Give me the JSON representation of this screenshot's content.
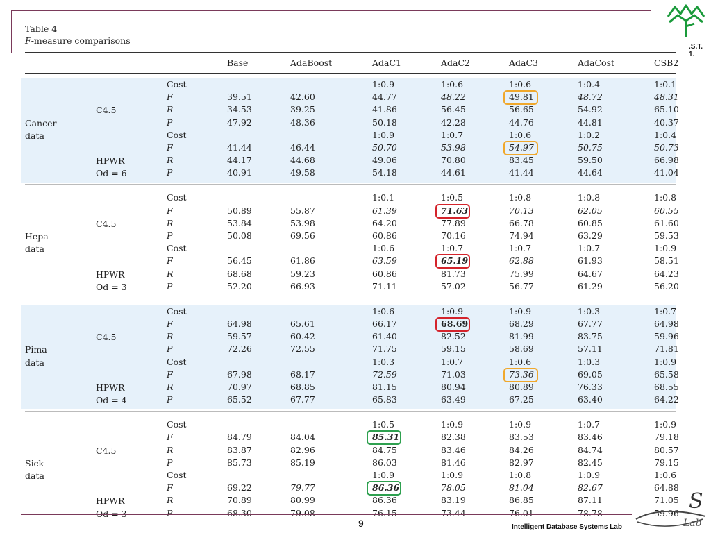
{
  "caption": {
    "title": "Table 4",
    "subtitle_italic": "F",
    "subtitle_rest": "-measure comparisons"
  },
  "logo_text": ".S.T.\n1.",
  "columns": [
    "Base",
    "AdaBoost",
    "AdaC1",
    "AdaC2",
    "AdaC3",
    "AdaCost",
    "CSB2"
  ],
  "groups": [
    {
      "dataset": [
        "Cancer",
        "data"
      ],
      "blocks": [
        {
          "clf": [
            "C4.5"
          ],
          "rows": [
            [
              "Cost",
              "",
              "",
              "1:0.9",
              "1:0.6",
              "1:0.6",
              "1:0.4",
              "1:0.1"
            ],
            [
              "F",
              "39.51",
              "42.60",
              "44.77",
              "48.22",
              "49.81",
              "48.72",
              "48.31"
            ],
            [
              "R",
              "34.53",
              "39.25",
              "41.86",
              "56.45",
              "56.65",
              "54.92",
              "65.10"
            ],
            [
              "P",
              "47.92",
              "48.36",
              "50.18",
              "42.28",
              "44.76",
              "44.81",
              "40.37"
            ]
          ]
        },
        {
          "clf": [
            "HPWR",
            "Od = 6"
          ],
          "rows": [
            [
              "Cost",
              "",
              "",
              "1:0.9",
              "1:0.7",
              "1:0.6",
              "1:0.2",
              "1:0.4"
            ],
            [
              "F",
              "41.44",
              "46.44",
              "50.70",
              "53.98",
              "54.97",
              "50.75",
              "50.73"
            ],
            [
              "R",
              "44.17",
              "44.68",
              "49.06",
              "70.80",
              "83.45",
              "59.50",
              "66.98"
            ],
            [
              "P",
              "40.91",
              "49.58",
              "54.18",
              "44.61",
              "41.44",
              "44.64",
              "41.04"
            ]
          ]
        }
      ]
    },
    {
      "dataset": [
        "Hepa",
        "data"
      ],
      "blocks": [
        {
          "clf": [
            "C4.5"
          ],
          "rows": [
            [
              "Cost",
              "",
              "",
              "1:0.1",
              "1:0.5",
              "1:0.8",
              "1:0.8",
              "1:0.8"
            ],
            [
              "F",
              "50.89",
              "55.87",
              "61.39",
              "71.63",
              "70.13",
              "62.05",
              "60.55"
            ],
            [
              "R",
              "53.84",
              "53.98",
              "64.20",
              "77.89",
              "66.78",
              "60.85",
              "61.60"
            ],
            [
              "P",
              "50.08",
              "69.56",
              "60.86",
              "70.16",
              "74.94",
              "63.29",
              "59.53"
            ]
          ]
        },
        {
          "clf": [
            "HPWR",
            "Od = 3"
          ],
          "rows": [
            [
              "Cost",
              "",
              "",
              "1:0.6",
              "1:0.7",
              "1:0.7",
              "1:0.7",
              "1:0.9"
            ],
            [
              "F",
              "56.45",
              "61.86",
              "63.59",
              "65.19",
              "62.88",
              "61.93",
              "58.51"
            ],
            [
              "R",
              "68.68",
              "59.23",
              "60.86",
              "81.73",
              "75.99",
              "64.67",
              "64.23"
            ],
            [
              "P",
              "52.20",
              "66.93",
              "71.11",
              "57.02",
              "56.77",
              "61.29",
              "56.20"
            ]
          ]
        }
      ]
    },
    {
      "dataset": [
        "Pima",
        "data"
      ],
      "blocks": [
        {
          "clf": [
            "C4.5"
          ],
          "rows": [
            [
              "Cost",
              "",
              "",
              "1:0.6",
              "1:0.9",
              "1:0.9",
              "1:0.3",
              "1:0.7"
            ],
            [
              "F",
              "64.98",
              "65.61",
              "66.17",
              "68.69",
              "68.29",
              "67.77",
              "64.98"
            ],
            [
              "R",
              "59.57",
              "60.42",
              "61.40",
              "82.52",
              "81.99",
              "83.75",
              "59.96"
            ],
            [
              "P",
              "72.26",
              "72.55",
              "71.75",
              "59.15",
              "58.69",
              "57.11",
              "71.81"
            ]
          ]
        },
        {
          "clf": [
            "HPWR",
            "Od = 4"
          ],
          "rows": [
            [
              "Cost",
              "",
              "",
              "1:0.3",
              "1:0.7",
              "1:0.6",
              "1:0.3",
              "1:0.9"
            ],
            [
              "F",
              "67.98",
              "68.17",
              "72.59",
              "71.03",
              "73.36",
              "69.05",
              "65.58"
            ],
            [
              "R",
              "70.97",
              "68.85",
              "81.15",
              "80.94",
              "80.89",
              "76.33",
              "68.55"
            ],
            [
              "P",
              "65.52",
              "67.77",
              "65.83",
              "63.49",
              "67.25",
              "63.40",
              "64.22"
            ]
          ]
        }
      ]
    },
    {
      "dataset": [
        "Sick",
        "data"
      ],
      "blocks": [
        {
          "clf": [
            "C4.5"
          ],
          "rows": [
            [
              "Cost",
              "",
              "",
              "1:0.5",
              "1:0.9",
              "1:0.9",
              "1:0.7",
              "1:0.9"
            ],
            [
              "F",
              "84.79",
              "84.04",
              "85.31",
              "82.38",
              "83.53",
              "83.46",
              "79.18"
            ],
            [
              "R",
              "83.87",
              "82.96",
              "84.75",
              "83.46",
              "84.26",
              "84.74",
              "80.57"
            ],
            [
              "P",
              "85.73",
              "85.19",
              "86.03",
              "81.46",
              "82.97",
              "82.45",
              "79.15"
            ]
          ]
        },
        {
          "clf": [
            "HPWR",
            "Od = 3"
          ],
          "rows": [
            [
              "Cost",
              "",
              "",
              "1:0.9",
              "1:0.9",
              "1:0.8",
              "1:0.9",
              "1:0.6"
            ],
            [
              "F",
              "69.22",
              "79.77",
              "86.36",
              "78.05",
              "81.04",
              "82.67",
              "64.88"
            ],
            [
              "R",
              "70.89",
              "80.99",
              "86.36",
              "83.19",
              "86.85",
              "87.11",
              "71.05"
            ],
            [
              "P",
              "68.30",
              "79.08",
              "76.15",
              "73.44",
              "76.01",
              "78.78",
              "59.96"
            ]
          ]
        }
      ]
    }
  ],
  "italic_cells": [
    [
      0,
      0,
      1,
      4
    ],
    [
      0,
      0,
      1,
      6
    ],
    [
      0,
      0,
      1,
      7
    ],
    [
      0,
      1,
      1,
      3
    ],
    [
      0,
      1,
      1,
      4
    ],
    [
      0,
      1,
      1,
      5
    ],
    [
      0,
      1,
      1,
      6
    ],
    [
      0,
      1,
      1,
      7
    ],
    [
      1,
      0,
      1,
      3
    ],
    [
      1,
      0,
      1,
      4
    ],
    [
      1,
      0,
      1,
      5
    ],
    [
      1,
      0,
      1,
      6
    ],
    [
      1,
      0,
      1,
      7
    ],
    [
      1,
      1,
      1,
      3
    ],
    [
      1,
      1,
      1,
      4
    ],
    [
      1,
      1,
      1,
      5
    ],
    [
      2,
      1,
      1,
      3
    ],
    [
      2,
      1,
      1,
      5
    ],
    [
      3,
      0,
      1,
      3
    ],
    [
      3,
      1,
      1,
      2
    ],
    [
      3,
      1,
      1,
      3
    ],
    [
      3,
      1,
      1,
      4
    ],
    [
      3,
      1,
      1,
      5
    ],
    [
      3,
      1,
      1,
      6
    ]
  ],
  "bold_cells": [
    [
      1,
      0,
      1,
      4
    ],
    [
      1,
      1,
      1,
      4
    ],
    [
      2,
      0,
      1,
      4
    ],
    [
      3,
      0,
      1,
      3
    ],
    [
      3,
      1,
      1,
      3
    ]
  ],
  "highlights": [
    {
      "cell": [
        0,
        0,
        1,
        5
      ],
      "color": "yellow"
    },
    {
      "cell": [
        0,
        1,
        1,
        5
      ],
      "color": "yellow"
    },
    {
      "cell": [
        1,
        0,
        1,
        4
      ],
      "color": "red"
    },
    {
      "cell": [
        1,
        1,
        1,
        4
      ],
      "color": "red"
    },
    {
      "cell": [
        2,
        0,
        1,
        4
      ],
      "color": "red"
    },
    {
      "cell": [
        2,
        1,
        1,
        5
      ],
      "color": "yellow"
    },
    {
      "cell": [
        3,
        0,
        1,
        3
      ],
      "color": "green"
    },
    {
      "cell": [
        3,
        1,
        1,
        3
      ],
      "color": "green"
    }
  ],
  "footer": {
    "page_number": "9",
    "lab_name": "Intelligent Database Systems Lab"
  },
  "colors": {
    "accent_line": "#7a3a5a",
    "band": "#e6f1fa",
    "yellow": "#f0a82c",
    "red": "#d4232b",
    "green": "#2ea04f"
  },
  "icons": [
    "university-logo-icon",
    "ids-lab-logo-icon"
  ]
}
